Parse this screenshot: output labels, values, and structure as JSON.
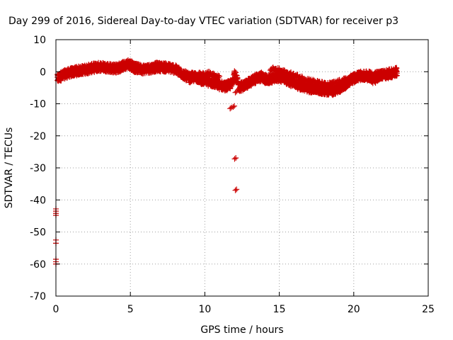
{
  "chart_data": {
    "type": "scatter",
    "title": "Day 299 of 2016, Sidereal Day-to-day VTEC variation (SDTVAR) for receiver p3",
    "xlabel": "GPS time / hours",
    "ylabel": "SDTVAR / TECUs",
    "xlim": [
      0,
      25
    ],
    "ylim": [
      -70,
      10
    ],
    "xticks": [
      0,
      5,
      10,
      15,
      20,
      25
    ],
    "yticks": [
      10,
      0,
      -10,
      -20,
      -30,
      -40,
      -50,
      -60,
      -70
    ],
    "grid": true,
    "marker": "+",
    "color": "#cc0000",
    "series": [
      {
        "name": "SDTVAR",
        "trend_x": [
          0.1,
          0.3,
          0.6,
          1.0,
          1.5,
          2.0,
          2.5,
          3.0,
          3.5,
          4.0,
          4.5,
          4.9,
          5.3,
          5.8,
          6.3,
          6.8,
          7.2,
          7.6,
          7.9,
          8.2,
          8.6,
          9.0,
          9.4,
          9.8,
          10.2,
          10.6,
          11.0,
          11.4,
          11.8,
          12.0,
          12.3,
          12.6,
          13.0,
          13.4,
          13.8,
          14.2,
          14.6,
          15.0,
          15.4,
          15.8,
          16.2,
          16.6,
          17.0,
          17.4,
          17.8,
          18.2,
          18.6,
          19.0,
          19.4,
          19.8,
          20.2,
          20.6,
          21.0,
          21.4,
          21.8,
          22.2,
          22.6,
          22.9
        ],
        "trend_y": [
          -2.2,
          -1.5,
          -0.8,
          -0.2,
          0.3,
          0.7,
          1.2,
          1.6,
          1.3,
          0.9,
          1.8,
          2.4,
          1.2,
          0.8,
          1.0,
          1.5,
          1.4,
          1.2,
          1.0,
          0.2,
          -1.0,
          -2.0,
          -1.6,
          -2.6,
          -3.0,
          -3.6,
          -4.2,
          -4.6,
          -3.8,
          -0.5,
          -4.8,
          -4.4,
          -3.4,
          -2.2,
          -1.6,
          -2.6,
          -1.9,
          -1.6,
          -2.4,
          -3.2,
          -3.9,
          -4.6,
          -5.1,
          -5.3,
          -5.6,
          -5.8,
          -6.0,
          -5.2,
          -4.0,
          -2.6,
          -1.6,
          -1.2,
          -1.3,
          -1.6,
          -1.0,
          -0.8,
          -0.4,
          0.0
        ],
        "secondary_x": [
          4.2,
          4.6,
          5.0,
          5.4,
          8.8,
          9.4,
          10.2,
          11.0,
          14.4,
          15.0,
          15.6,
          16.4,
          17.2,
          18.2,
          19.2,
          20.0,
          20.8,
          21.6
        ],
        "secondary_y": [
          0.5,
          1.5,
          2.8,
          2.0,
          -0.5,
          -1.2,
          -0.4,
          -2.0,
          0.8,
          0.4,
          -0.6,
          -1.8,
          -3.0,
          -4.2,
          -3.0,
          -1.6,
          -2.2,
          -3.4
        ],
        "spread": 1.4,
        "outliers_x": [
          11.7,
          11.9,
          12.05,
          12.0,
          12.05,
          0.0,
          0.0,
          0.0,
          0.0,
          0.0,
          0.0,
          0.0,
          0.0,
          0.0
        ],
        "outliers_y": [
          -11.5,
          -11.0,
          -6.5,
          -27.2,
          -37.0,
          -42.8,
          -43.5,
          -44.2,
          -44.8,
          -52.5,
          -53.5,
          -58.5,
          -59.3,
          -60.0
        ]
      }
    ]
  }
}
